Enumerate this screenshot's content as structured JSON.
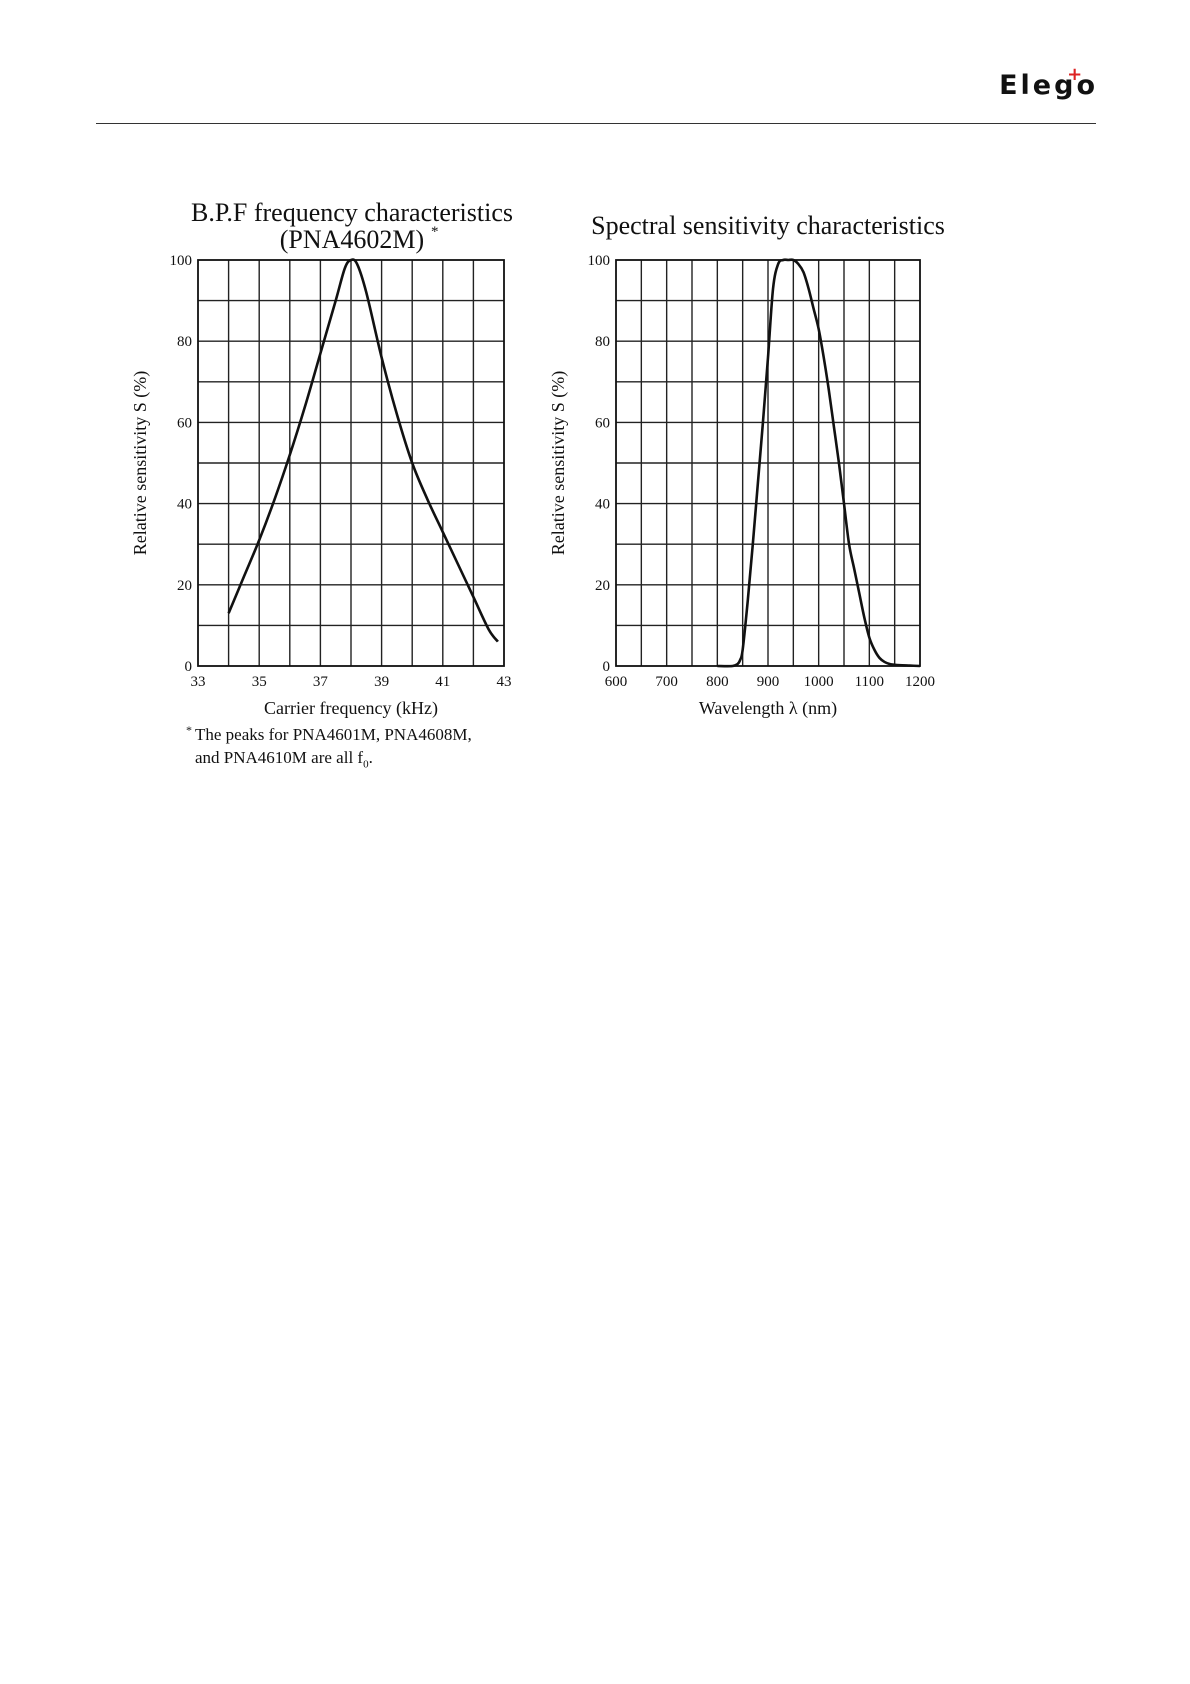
{
  "header": {
    "logo_text": "Elego",
    "logo_mark": "+"
  },
  "footnote": {
    "asterisk": "*",
    "line1": "The peaks for PNA4601M, PNA4608M,",
    "line2_main": "and PNA4610M are all f",
    "line2_sub": "0",
    "line2_end": "."
  },
  "chart_data": [
    {
      "type": "line",
      "title": "B.P.F frequency characteristics",
      "subtitle": "(PNA4602M)",
      "subtitle_mark": "*",
      "xlabel": "Carrier  frequency   (kHz)",
      "ylabel": "Relative sensitivity    S   (%)",
      "xlim": [
        33,
        43
      ],
      "ylim": [
        0,
        100
      ],
      "xticks": [
        33,
        35,
        37,
        39,
        41,
        43
      ],
      "yticks": [
        0,
        20,
        40,
        60,
        80,
        100
      ],
      "x_gridlines": 10,
      "y_gridlines": 10,
      "grid": true,
      "series": [
        {
          "x": [
            34.0,
            34.5,
            35.0,
            35.5,
            36.0,
            36.5,
            37.0,
            37.5,
            37.8,
            38.0,
            38.2,
            38.5,
            39.0,
            39.5,
            40.0,
            40.5,
            41.0,
            41.5,
            42.0,
            42.5,
            42.8
          ],
          "y": [
            13,
            22,
            31,
            41,
            52,
            64,
            77,
            90,
            98,
            100,
            99,
            92,
            76,
            62,
            50,
            41,
            33,
            25,
            17,
            9,
            6
          ]
        }
      ]
    },
    {
      "type": "line",
      "title": "Spectral sensitivity characteristics",
      "xlabel": "Wavelength    λ   (nm)",
      "ylabel": "Relative sensitivity    S   (%)",
      "xlim": [
        600,
        1200
      ],
      "ylim": [
        0,
        100
      ],
      "xticks": [
        600,
        700,
        800,
        900,
        1000,
        1100,
        1200
      ],
      "yticks": [
        0,
        20,
        40,
        60,
        80,
        100
      ],
      "x_gridlines": 12,
      "y_gridlines": 10,
      "grid": true,
      "series": [
        {
          "x": [
            800,
            830,
            840,
            845,
            850,
            860,
            870,
            880,
            890,
            900,
            910,
            920,
            930,
            940,
            950,
            960,
            970,
            980,
            990,
            1000,
            1010,
            1020,
            1030,
            1040,
            1050,
            1060,
            1070,
            1080,
            1090,
            1100,
            1110,
            1120,
            1130,
            1140,
            1150,
            1160,
            1180,
            1200
          ],
          "y": [
            0,
            0,
            0.5,
            1.5,
            4,
            16,
            30,
            45,
            60,
            76,
            93,
            99,
            100,
            100,
            100,
            99,
            97,
            93,
            88,
            83,
            76,
            68,
            59,
            50,
            40,
            30,
            24,
            18,
            12,
            7,
            4,
            2,
            1,
            0.5,
            0.3,
            0.2,
            0.1,
            0
          ]
        }
      ]
    }
  ]
}
